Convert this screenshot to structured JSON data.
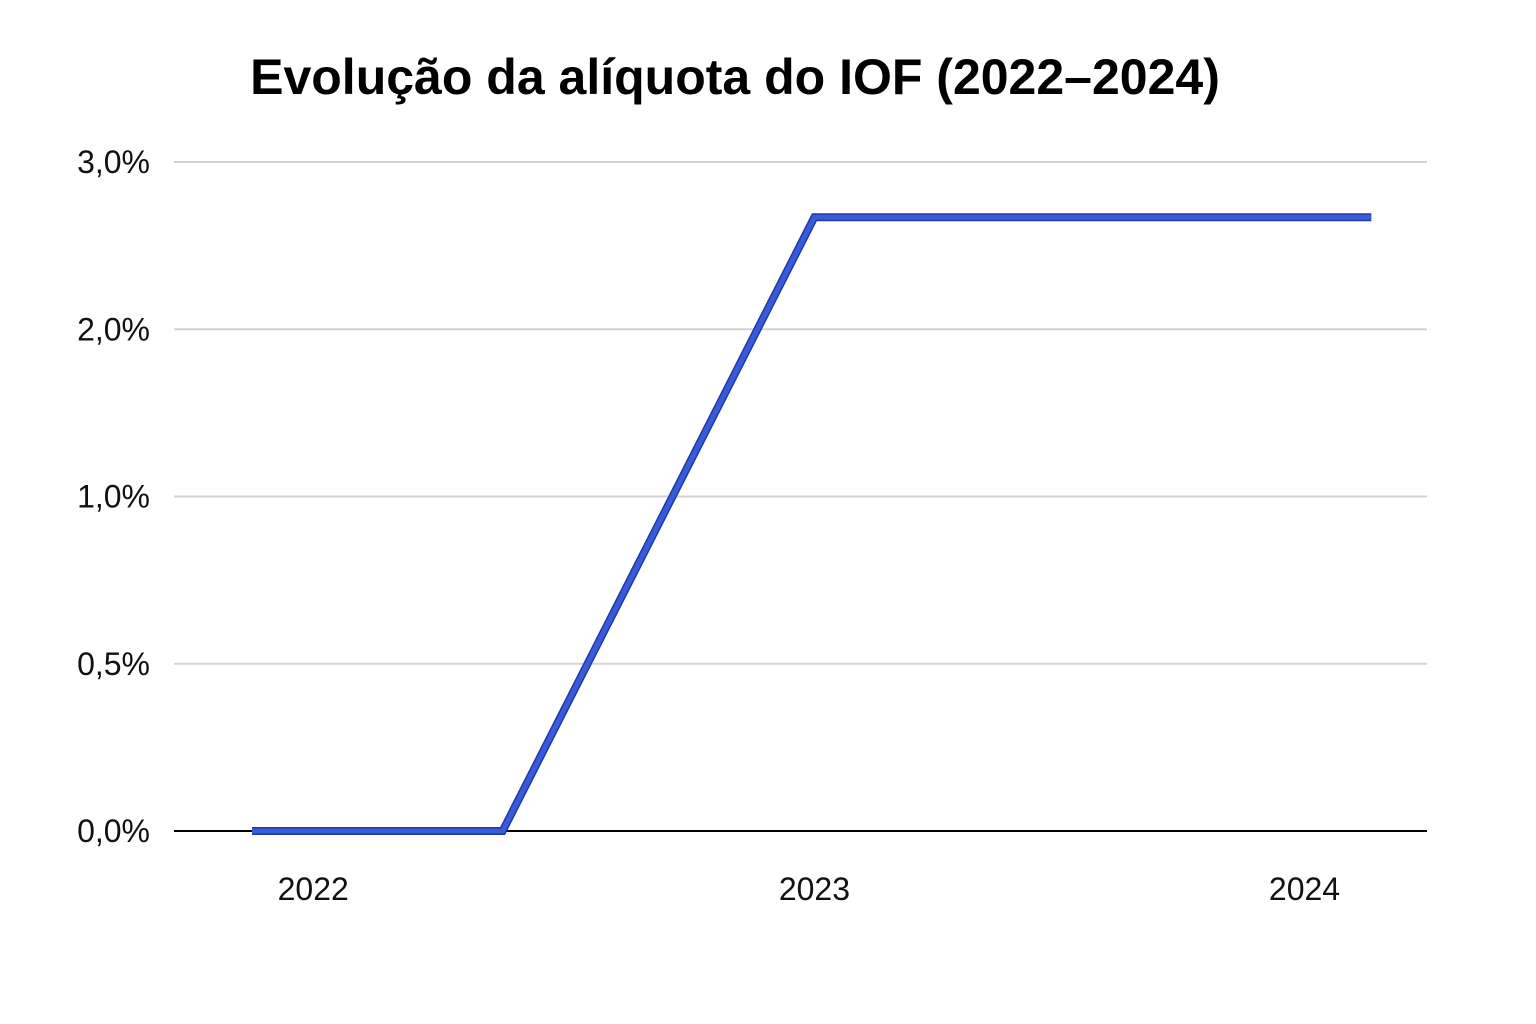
{
  "chart_data": {
    "type": "line",
    "title": "Evolução da alíquota do IOF (2022–2024)",
    "xlabel": "",
    "ylabel": "",
    "y_ticks": [
      {
        "value": 0.0,
        "label": "0,0%"
      },
      {
        "value": 0.5,
        "label": "0,5%"
      },
      {
        "value": 1.0,
        "label": "1,0%"
      },
      {
        "value": 2.0,
        "label": "2,0%"
      },
      {
        "value": 3.0,
        "label": "3,0%"
      }
    ],
    "y_scale_note": "non-uniform axis: tick labels 0,0% 0,5% 1,0% 2,0% 3,0% are evenly spaced",
    "x_ticks": [
      {
        "value": 2022.1,
        "label": "2022"
      },
      {
        "value": 2023.0,
        "label": "2023"
      },
      {
        "value": 2023.88,
        "label": "2024"
      }
    ],
    "xlim": [
      2021.85,
      2024.1
    ],
    "series": [
      {
        "name": "",
        "color": "#3a5bd9",
        "points": [
          {
            "x": 2021.99,
            "y": 0.0
          },
          {
            "x": 2022.44,
            "y": 0.0
          },
          {
            "x": 2023.0,
            "y": 2.67
          },
          {
            "x": 2024.0,
            "y": 2.67
          }
        ]
      }
    ],
    "grid": true,
    "grid_color": "#d3d3d3",
    "axis_color": "#000000",
    "legend": "none"
  }
}
